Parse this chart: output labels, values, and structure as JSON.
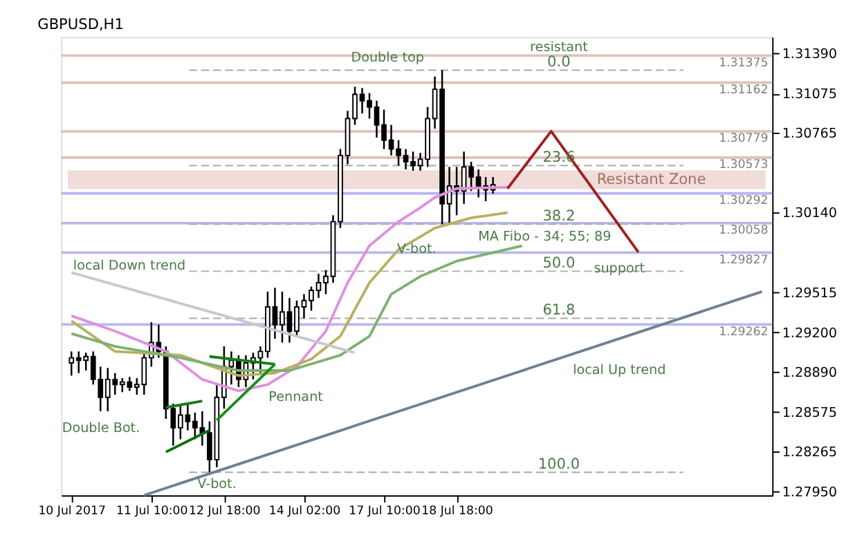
{
  "chart_data": {
    "type": "candlestick",
    "title": "GBPUSD,H1",
    "categories": [
      "10 Jul 2017",
      null,
      null,
      null,
      null,
      null,
      null,
      null,
      null,
      null,
      null,
      "11 Jul 10:00",
      null,
      null,
      null,
      null,
      null,
      null,
      null,
      null,
      null,
      "12 Jul 18:00",
      null,
      null,
      null,
      null,
      null,
      null,
      null,
      null,
      null,
      null,
      "14 Jul 02:00",
      null,
      null,
      null,
      null,
      null,
      null,
      null,
      null,
      null,
      null,
      "17 Jul 10:00",
      null,
      null,
      null,
      null,
      null,
      null,
      null,
      null,
      null,
      "18 Jul 18:00",
      null,
      null,
      null,
      null,
      null,
      null,
      null,
      null,
      null,
      null,
      null,
      null,
      null,
      null,
      null,
      null,
      null,
      null,
      null,
      null,
      null,
      null,
      null,
      null,
      null,
      null,
      null,
      null,
      null,
      null,
      null,
      null,
      null,
      null,
      null,
      null,
      null,
      null,
      null,
      null,
      null,
      null
    ],
    "ohlc": [
      [
        1.2896,
        1.2905,
        1.2886,
        1.29
      ],
      [
        1.29,
        1.2905,
        1.2888,
        1.2898
      ],
      [
        1.2898,
        1.2904,
        1.289,
        1.2901
      ],
      [
        1.2901,
        1.2905,
        1.2879,
        1.2883
      ],
      [
        1.2883,
        1.2893,
        1.2858,
        1.2869
      ],
      [
        1.2869,
        1.2892,
        1.2858,
        1.2883
      ],
      [
        1.2883,
        1.2888,
        1.2871,
        1.2879
      ],
      [
        1.2879,
        1.2884,
        1.2873,
        1.2881
      ],
      [
        1.2881,
        1.2885,
        1.2874,
        1.2877
      ],
      [
        1.2877,
        1.2884,
        1.2871,
        1.2879
      ],
      [
        1.2879,
        1.2905,
        1.2871,
        1.29
      ],
      [
        1.29,
        1.2928,
        1.2893,
        1.2912
      ],
      [
        1.2912,
        1.2926,
        1.29,
        1.2905
      ],
      [
        1.2905,
        1.2909,
        1.2852,
        1.286
      ],
      [
        1.286,
        1.2864,
        1.2831,
        1.2845
      ],
      [
        1.2845,
        1.2862,
        1.2836,
        1.2855
      ],
      [
        1.2855,
        1.2864,
        1.2843,
        1.285
      ],
      [
        1.285,
        1.2857,
        1.2836,
        1.2845
      ],
      [
        1.2845,
        1.2858,
        1.2831,
        1.2841
      ],
      [
        1.2841,
        1.285,
        1.281,
        1.282
      ],
      [
        1.282,
        1.2879,
        1.2814,
        1.2869
      ],
      [
        1.2869,
        1.2909,
        1.286,
        1.2893
      ],
      [
        1.2893,
        1.2905,
        1.2879,
        1.2898
      ],
      [
        1.2898,
        1.2902,
        1.2877,
        1.2883
      ],
      [
        1.2883,
        1.2902,
        1.2877,
        1.2896
      ],
      [
        1.2896,
        1.2904,
        1.2883,
        1.29
      ],
      [
        1.29,
        1.2909,
        1.2888,
        1.2905
      ],
      [
        1.2905,
        1.2952,
        1.29,
        1.294
      ],
      [
        1.294,
        1.2955,
        1.2915,
        1.2926
      ],
      [
        1.2926,
        1.2952,
        1.2912,
        1.2936
      ],
      [
        1.2936,
        1.2947,
        1.2912,
        1.2921
      ],
      [
        1.2921,
        1.2945,
        1.2917,
        1.294
      ],
      [
        1.294,
        1.295,
        1.2931,
        1.2945
      ],
      [
        1.2945,
        1.2956,
        1.2937,
        1.2953
      ],
      [
        1.2953,
        1.2966,
        1.2947,
        1.2959
      ],
      [
        1.2959,
        1.2969,
        1.295,
        1.2964
      ],
      [
        1.2964,
        1.3012,
        1.2959,
        1.3007
      ],
      [
        1.3007,
        1.3064,
        1.3002,
        1.3059
      ],
      [
        1.3059,
        1.3094,
        1.3052,
        1.3088
      ],
      [
        1.3088,
        1.3113,
        1.3083,
        1.3107
      ],
      [
        1.3107,
        1.3112,
        1.3092,
        1.3102
      ],
      [
        1.3102,
        1.3108,
        1.3088,
        1.3097
      ],
      [
        1.3097,
        1.3102,
        1.3073,
        1.3083
      ],
      [
        1.3083,
        1.3095,
        1.3064,
        1.3071
      ],
      [
        1.3071,
        1.3083,
        1.3059,
        1.3064
      ],
      [
        1.3064,
        1.3071,
        1.3051,
        1.3059
      ],
      [
        1.3059,
        1.3064,
        1.3048,
        1.3054
      ],
      [
        1.3054,
        1.3062,
        1.3047,
        1.3051
      ],
      [
        1.3051,
        1.3061,
        1.3047,
        1.3056
      ],
      [
        1.3056,
        1.3097,
        1.305,
        1.3088
      ],
      [
        1.3088,
        1.3121,
        1.308,
        1.3111
      ],
      [
        1.3111,
        1.3126,
        1.3005,
        1.3021
      ],
      [
        1.3021,
        1.305,
        1.3005,
        1.3035
      ],
      [
        1.3035,
        1.305,
        1.3012,
        1.3031
      ],
      [
        1.3031,
        1.3062,
        1.3021,
        1.305
      ],
      [
        1.305,
        1.3054,
        1.3031,
        1.3042
      ],
      [
        1.3042,
        1.3048,
        1.3026,
        1.3035
      ],
      [
        1.3035,
        1.3042,
        1.3023,
        1.3032
      ],
      [
        1.3032,
        1.3042,
        1.3029,
        1.3036
      ],
      null,
      null,
      null,
      null,
      null,
      null,
      null,
      null,
      null,
      null,
      null,
      null,
      null,
      null,
      null,
      null,
      null,
      null,
      null,
      null,
      null,
      null,
      null,
      null,
      null,
      null,
      null,
      null,
      null,
      null,
      null,
      null,
      null,
      null,
      null,
      null,
      null
    ],
    "series": [
      {
        "type": "line",
        "color": "#e090e0",
        "values": [
          1.2933,
          null,
          null,
          null,
          null,
          null,
          1.2921,
          null,
          null,
          null,
          null,
          null,
          null,
          1.2905,
          null,
          null,
          null,
          null,
          1.2883,
          null,
          null,
          null,
          null,
          1.2874,
          null,
          null,
          null,
          1.2879,
          null,
          null,
          null,
          1.2893,
          null,
          null,
          null,
          1.2921,
          null,
          null,
          1.2959,
          null,
          null,
          1.2988,
          null,
          null,
          null,
          1.3007,
          null,
          null,
          1.3018,
          null,
          1.3026,
          null,
          null,
          1.3033,
          null,
          null,
          null,
          null,
          null,
          null,
          1.3034,
          null,
          null,
          null,
          null,
          null,
          null,
          null,
          null,
          null,
          null,
          null,
          null,
          null,
          null,
          null,
          null,
          null,
          null,
          null,
          null,
          null,
          null,
          null,
          null,
          null,
          null,
          null,
          null,
          null,
          null,
          null,
          null,
          null,
          null,
          null
        ]
      },
      {
        "type": "line",
        "color": "#b8b060",
        "values": [
          1.2929,
          null,
          null,
          null,
          null,
          null,
          1.2905,
          null,
          null,
          null,
          null,
          null,
          null,
          null,
          null,
          1.2902,
          null,
          null,
          null,
          null,
          null,
          null,
          null,
          1.2886,
          null,
          null,
          null,
          null,
          1.2888,
          null,
          null,
          null,
          null,
          1.2899,
          null,
          null,
          null,
          1.2917,
          null,
          null,
          null,
          1.2959,
          null,
          null,
          null,
          1.2985,
          null,
          null,
          null,
          null,
          1.3002,
          null,
          null,
          null,
          null,
          1.301,
          null,
          null,
          null,
          null,
          1.3014,
          null,
          null,
          null,
          null,
          null,
          null,
          null,
          null,
          null,
          null,
          null,
          null,
          null,
          null,
          null,
          null,
          null,
          null,
          null,
          null,
          null,
          null,
          null,
          null,
          null,
          null,
          null,
          null,
          null,
          null,
          null,
          null,
          null,
          null,
          null
        ]
      },
      {
        "type": "line",
        "color": "#80b070",
        "values": [
          1.2919,
          null,
          null,
          null,
          null,
          null,
          1.2909,
          null,
          null,
          null,
          null,
          null,
          null,
          null,
          null,
          1.29,
          null,
          null,
          null,
          null,
          null,
          null,
          null,
          1.289,
          null,
          null,
          null,
          null,
          null,
          null,
          1.289,
          null,
          null,
          null,
          null,
          null,
          null,
          1.2902,
          null,
          null,
          null,
          1.2917,
          null,
          null,
          1.295,
          null,
          null,
          null,
          1.2964,
          null,
          null,
          null,
          null,
          1.2976,
          null,
          null,
          null,
          null,
          null,
          null,
          null,
          null,
          1.2988,
          null,
          null,
          null,
          null,
          null,
          null,
          null,
          null,
          null,
          null,
          null,
          null,
          null,
          null,
          null,
          null,
          null,
          null,
          null,
          null,
          null,
          null,
          null,
          null,
          null,
          null,
          null,
          null,
          null,
          null,
          null,
          null,
          null
        ]
      },
      {
        "type": "line",
        "color": "#c8c8c8",
        "values": [
          1.2967,
          null,
          null,
          null,
          null,
          null,
          null,
          null,
          null,
          null,
          null,
          null,
          null,
          null,
          null,
          null,
          null,
          null,
          null,
          null,
          null,
          null,
          null,
          null,
          null,
          null,
          null,
          null,
          null,
          null,
          null,
          null,
          null,
          null,
          null,
          null,
          null,
          null,
          null,
          1.2904,
          null,
          null,
          null,
          null,
          null,
          null,
          null,
          null,
          null,
          null,
          null,
          null,
          null,
          null,
          null,
          null,
          null,
          null,
          null,
          null,
          null,
          null,
          null,
          null,
          null,
          null,
          null,
          null,
          null,
          null,
          null,
          null,
          null,
          null,
          null,
          null,
          null,
          null,
          null,
          null,
          null,
          null,
          null,
          null,
          null,
          null,
          null,
          null,
          null,
          null,
          null,
          null,
          null,
          null,
          null,
          null
        ]
      },
      {
        "type": "line",
        "color": "#708090",
        "values": [
          null,
          null,
          null,
          null,
          null,
          null,
          null,
          null,
          null,
          null,
          1.2792,
          null,
          null,
          null,
          null,
          null,
          null,
          null,
          null,
          null,
          null,
          null,
          null,
          null,
          null,
          null,
          null,
          null,
          null,
          null,
          null,
          null,
          null,
          null,
          null,
          null,
          null,
          null,
          null,
          null,
          null,
          null,
          null,
          null,
          null,
          null,
          null,
          null,
          null,
          null,
          null,
          null,
          null,
          null,
          null,
          null,
          null,
          null,
          null,
          null,
          null,
          null,
          null,
          null,
          null,
          null,
          null,
          null,
          null,
          null,
          null,
          null,
          null,
          null,
          null,
          null,
          null,
          null,
          null,
          null,
          null,
          null,
          null,
          null,
          null,
          null,
          null,
          null,
          null,
          null,
          null,
          null,
          null,
          null,
          null,
          1.2952
        ]
      },
      {
        "type": "line",
        "color": "#187818",
        "values": [
          null,
          null,
          null,
          null,
          null,
          null,
          null,
          null,
          null,
          null,
          null,
          null,
          null,
          1.2861,
          null,
          null,
          null,
          null,
          1.2866,
          null,
          null,
          null,
          null,
          null,
          null,
          null,
          null,
          null,
          null,
          null,
          null,
          null,
          null,
          null,
          null,
          null,
          null,
          null,
          null,
          null,
          null,
          null,
          null,
          null,
          null,
          null,
          null,
          null,
          null,
          null,
          null,
          null,
          null,
          null,
          null,
          null,
          null,
          null,
          null,
          null,
          null,
          null,
          null,
          null,
          null,
          null,
          null,
          null,
          null,
          null,
          null,
          null,
          null,
          null,
          null,
          null,
          null,
          null,
          null,
          null,
          null,
          null,
          null,
          null,
          null,
          null,
          null,
          null,
          null,
          null,
          null,
          null,
          null,
          null,
          null,
          null
        ]
      },
      {
        "type": "line",
        "color": "#0c700c",
        "values": [
          null,
          null,
          null,
          null,
          null,
          null,
          null,
          null,
          null,
          null,
          null,
          null,
          null,
          1.2826,
          null,
          null,
          null,
          null,
          null,
          1.2843,
          null,
          null,
          null,
          null,
          null,
          null,
          null,
          null,
          null,
          null,
          null,
          null,
          null,
          null,
          null,
          null,
          null,
          null,
          null,
          null,
          null,
          null,
          null,
          null,
          null,
          null,
          null,
          null,
          null,
          null,
          null,
          null,
          null,
          null,
          null,
          null,
          null,
          null,
          null,
          null,
          null,
          null,
          null,
          null,
          null,
          null,
          null,
          null,
          null,
          null,
          null,
          null,
          null,
          null,
          null,
          null,
          null,
          null,
          null,
          null,
          null,
          null,
          null,
          null,
          null,
          null,
          null,
          null,
          null,
          null,
          null,
          null,
          null,
          null,
          null,
          null
        ]
      },
      {
        "type": "line",
        "color": "#108010",
        "values": [
          null,
          null,
          null,
          null,
          null,
          null,
          null,
          null,
          null,
          null,
          null,
          null,
          null,
          null,
          null,
          null,
          null,
          null,
          null,
          1.2901,
          null,
          null,
          null,
          null,
          null,
          null,
          null,
          null,
          1.2895,
          null,
          null,
          null,
          null,
          null,
          null,
          null,
          null,
          null,
          null,
          null,
          null,
          null,
          null,
          null,
          null,
          null,
          null,
          null,
          null,
          null,
          null,
          null,
          null,
          null,
          null,
          null,
          null,
          null,
          null,
          null,
          null,
          null,
          null,
          null,
          null,
          null,
          null,
          null,
          null,
          null,
          null,
          null,
          null,
          null,
          null,
          null,
          null,
          null,
          null,
          null,
          null,
          null,
          null,
          null,
          null,
          null,
          null,
          null,
          null,
          null,
          null,
          null,
          null,
          null,
          null,
          null
        ]
      },
      {
        "type": "line",
        "color": "#149014",
        "values": [
          null,
          null,
          null,
          null,
          null,
          null,
          null,
          null,
          null,
          null,
          null,
          null,
          null,
          null,
          null,
          null,
          null,
          null,
          null,
          null,
          1.2851,
          null,
          null,
          null,
          null,
          null,
          null,
          null,
          1.2895,
          null,
          null,
          null,
          null,
          null,
          null,
          null,
          null,
          null,
          null,
          null,
          null,
          null,
          null,
          null,
          null,
          null,
          null,
          null,
          null,
          null,
          null,
          null,
          null,
          null,
          null,
          null,
          null,
          null,
          null,
          null,
          null,
          null,
          null,
          null,
          null,
          null,
          null,
          null,
          null,
          null,
          null,
          null,
          null,
          null,
          null,
          null,
          null,
          null,
          null,
          null,
          null,
          null,
          null,
          null,
          null,
          null,
          null,
          null,
          null,
          null,
          null,
          null,
          null,
          null,
          null,
          null
        ]
      },
      {
        "type": "line",
        "color": "#a02020",
        "values": [
          null,
          null,
          null,
          null,
          null,
          null,
          null,
          null,
          null,
          null,
          null,
          null,
          null,
          null,
          null,
          null,
          null,
          null,
          null,
          null,
          null,
          null,
          null,
          null,
          null,
          null,
          null,
          null,
          null,
          null,
          null,
          null,
          null,
          null,
          null,
          null,
          null,
          null,
          null,
          null,
          null,
          null,
          null,
          null,
          null,
          null,
          null,
          null,
          null,
          null,
          null,
          null,
          null,
          null,
          null,
          null,
          null,
          null,
          null,
          null,
          1.3033,
          null,
          null,
          null,
          null,
          null,
          1.3078,
          null,
          null,
          null,
          null,
          null,
          null,
          null,
          null,
          null,
          null,
          null,
          1.2983,
          null,
          null,
          null,
          null,
          null,
          null,
          null,
          null,
          null,
          null,
          null,
          null,
          null,
          null,
          null,
          null,
          null
        ]
      }
    ],
    "ylim": [
      1.2792,
      1.3152
    ],
    "yticks": [
      {
        "value": 1.2795,
        "label": "1.27950"
      },
      {
        "value": 1.28265,
        "label": "1.28265"
      },
      {
        "value": 1.28575,
        "label": "1.28575"
      },
      {
        "value": 1.2889,
        "label": "1.28890"
      },
      {
        "value": 1.292,
        "label": "1.29200"
      },
      {
        "value": 1.29515,
        "label": "1.29515"
      },
      {
        "value": 1.3014,
        "label": "1.30140"
      },
      {
        "value": 1.30765,
        "label": "1.30765"
      },
      {
        "value": 1.31075,
        "label": "1.31075"
      },
      {
        "value": 1.3139,
        "label": "1.31390"
      }
    ],
    "bands": [
      {
        "axis": "y",
        "from": 1.30326,
        "to": 1.30472,
        "label": "Resistant Zone",
        "color": "#f0dcd8"
      }
    ],
    "ref_lines": [
      {
        "axis": "y",
        "value": 1.31375,
        "label": "1.31375",
        "color": "#dfc3bb",
        "line_style": "solid"
      },
      {
        "axis": "y",
        "value": 1.31162,
        "label": "1.31162",
        "color": "#dfc3bb",
        "line_style": "solid"
      },
      {
        "axis": "y",
        "value": 1.30779,
        "label": "1.30779",
        "color": "#dfc3bb",
        "line_style": "solid"
      },
      {
        "axis": "y",
        "value": 1.30573,
        "label": "1.30573",
        "color": "#dfc3bb",
        "line_style": "solid"
      },
      {
        "axis": "y",
        "value": 1.30292,
        "label": "1.30292",
        "color": "#b8b8f0",
        "line_style": "solid"
      },
      {
        "axis": "y",
        "value": 1.30058,
        "label": "1.30058",
        "color": "#b8b8f0",
        "line_style": "solid"
      },
      {
        "axis": "y",
        "value": 1.29827,
        "label": "1.29827",
        "color": "#b8b8f0",
        "line_style": "solid"
      },
      {
        "axis": "y",
        "value": 1.29262,
        "label": "1.29262",
        "color": "#b8b8f0",
        "line_style": "solid"
      },
      {
        "axis": "y",
        "value": 1.3126,
        "color": "#aaaaaa",
        "line_style": "dashed"
      },
      {
        "axis": "y",
        "value": 1.3051,
        "color": "#aaaaaa",
        "line_style": "dashed"
      },
      {
        "axis": "y",
        "value": 1.3005,
        "color": "#aaaaaa",
        "line_style": "dashed"
      },
      {
        "axis": "y",
        "value": 1.2968,
        "color": "#aaaaaa",
        "line_style": "dashed"
      },
      {
        "axis": "y",
        "value": 1.2931,
        "color": "#aaaaaa",
        "line_style": "dashed"
      },
      {
        "axis": "y",
        "value": 1.281,
        "color": "#aaaaaa",
        "line_style": "dashed"
      }
    ],
    "annotations": [
      "Double top",
      "V-bot.",
      "V-bot.",
      "Double Bot.",
      "Pennant",
      "local Down trend",
      "local Up trend",
      "MA Fibo - 34; 55; 89",
      "support",
      "resistant",
      {
        "text": "0.0",
        "y": 1.3126
      },
      {
        "text": "23.6",
        "y": 1.3051
      },
      {
        "text": "38.2",
        "y": 1.3005
      },
      {
        "text": "50.0",
        "y": 1.2968
      },
      {
        "text": "61.8",
        "y": 1.2931
      },
      {
        "text": "100.0",
        "y": 1.281
      }
    ],
    "grid": false
  }
}
